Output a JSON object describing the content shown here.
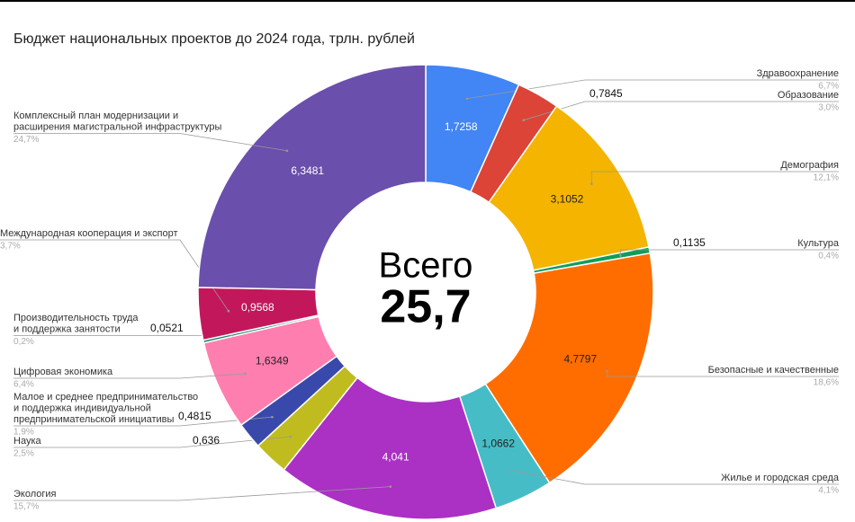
{
  "chart_data": {
    "type": "donut",
    "title": "Бюджет национальных проектов до 2024 года, трлн. рублей",
    "center_label": "Всего",
    "total_label": "25,7",
    "categories": [
      [
        "Здравоохранение"
      ],
      [
        "Образование"
      ],
      [
        "Демография"
      ],
      [
        "Культура"
      ],
      [
        "Безопасные и качественные"
      ],
      [
        "Жилье и городская среда"
      ],
      [
        "Экология"
      ],
      [
        "Наука"
      ],
      [
        "Малое и среднее предпринимательство",
        "и поддержка индивидуальной",
        "предпринимательской инициативы"
      ],
      [
        "Цифровая экономика"
      ],
      [
        "Производительность труда",
        "и поддержка занятости"
      ],
      [
        "Международная кооперация и экспорт"
      ],
      [
        "Комплексный план модернизации и",
        "расширения магистральной инфраструктуры"
      ]
    ],
    "values": [
      1.7258,
      0.7845,
      3.1052,
      0.1135,
      4.7797,
      1.0662,
      4.041,
      0.636,
      0.4815,
      1.6349,
      0.0521,
      0.9568,
      6.3481
    ],
    "value_labels": [
      "1,7258",
      "0,7845",
      "3,1052",
      "0,1135",
      "4,7797",
      "1,0662",
      "4,041",
      "0,636",
      "0,4815",
      "1,6349",
      "0,0521",
      "0,9568",
      "6,3481"
    ],
    "percent_labels": [
      "6,7%",
      "3,0%",
      "12,1%",
      "0,4%",
      "18,6%",
      "4,1%",
      "15,7%",
      "2,5%",
      "1,9%",
      "6,4%",
      "0,2%",
      "3,7%",
      "24,7%"
    ],
    "colors": [
      "#4285f4",
      "#db4437",
      "#f4b400",
      "#0f9d58",
      "#ff6d00",
      "#46bdc6",
      "#ab30c4",
      "#c0bc1f",
      "#3949ab",
      "#ff7eb0",
      "#1d8a6a",
      "#c2185b",
      "#6a4fac"
    ]
  }
}
